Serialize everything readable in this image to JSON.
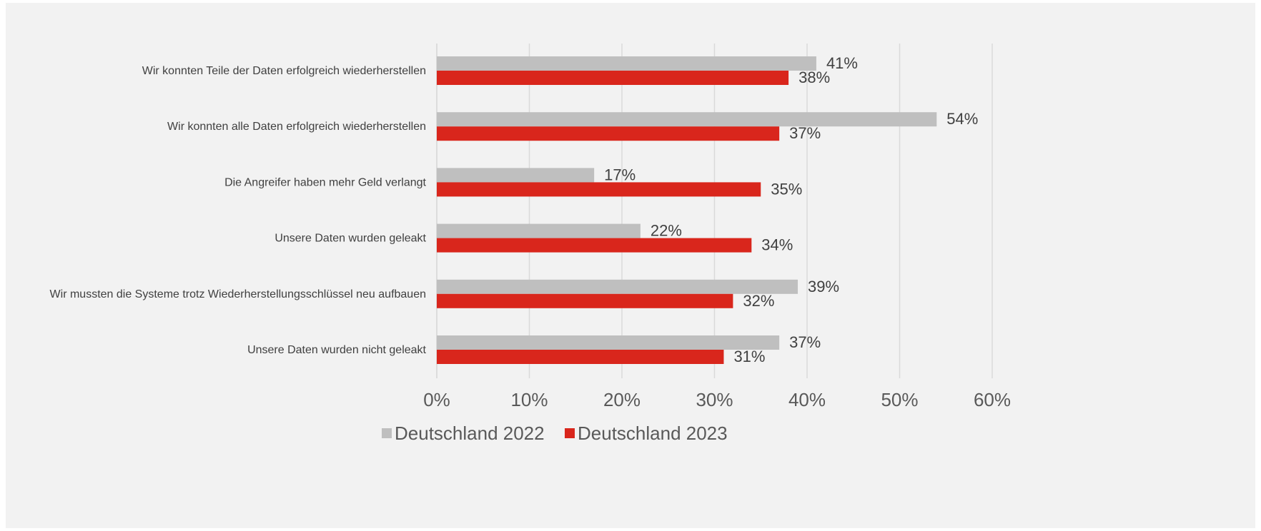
{
  "chart_data": {
    "type": "bar",
    "orientation": "horizontal",
    "categories": [
      "Wir konnten Teile der Daten erfolgreich wiederherstellen",
      "Wir konnten alle Daten erfolgreich wiederherstellen",
      "Die Angreifer haben mehr Geld verlangt",
      "Unsere Daten wurden geleakt",
      "Wir mussten die Systeme trotz Wiederherstellungsschlüssel neu aufbauen",
      "Unsere Daten wurden nicht geleakt"
    ],
    "series": [
      {
        "name": "Deutschland 2022",
        "color": "#bfbfbf",
        "values": [
          41,
          54,
          17,
          22,
          39,
          37
        ],
        "labels": [
          "41%",
          "54%",
          "17%",
          "22%",
          "39%",
          "37%"
        ]
      },
      {
        "name": "Deutschland 2023",
        "color": "#d9261c",
        "values": [
          38,
          37,
          35,
          34,
          32,
          31
        ],
        "labels": [
          "38%",
          "37%",
          "35%",
          "34%",
          "32%",
          "31%"
        ]
      }
    ],
    "xlim": [
      0,
      60
    ],
    "xticks": [
      0,
      10,
      20,
      30,
      40,
      50,
      60
    ],
    "xtick_labels": [
      "0%",
      "10%",
      "20%",
      "30%",
      "40%",
      "50%",
      "60%"
    ],
    "grid": true,
    "legend_position": "bottom",
    "title": "",
    "xlabel": "",
    "ylabel": ""
  },
  "colors": {
    "background": "#f2f2f2",
    "gridline": "#d9d9d9",
    "text": "#404040"
  }
}
